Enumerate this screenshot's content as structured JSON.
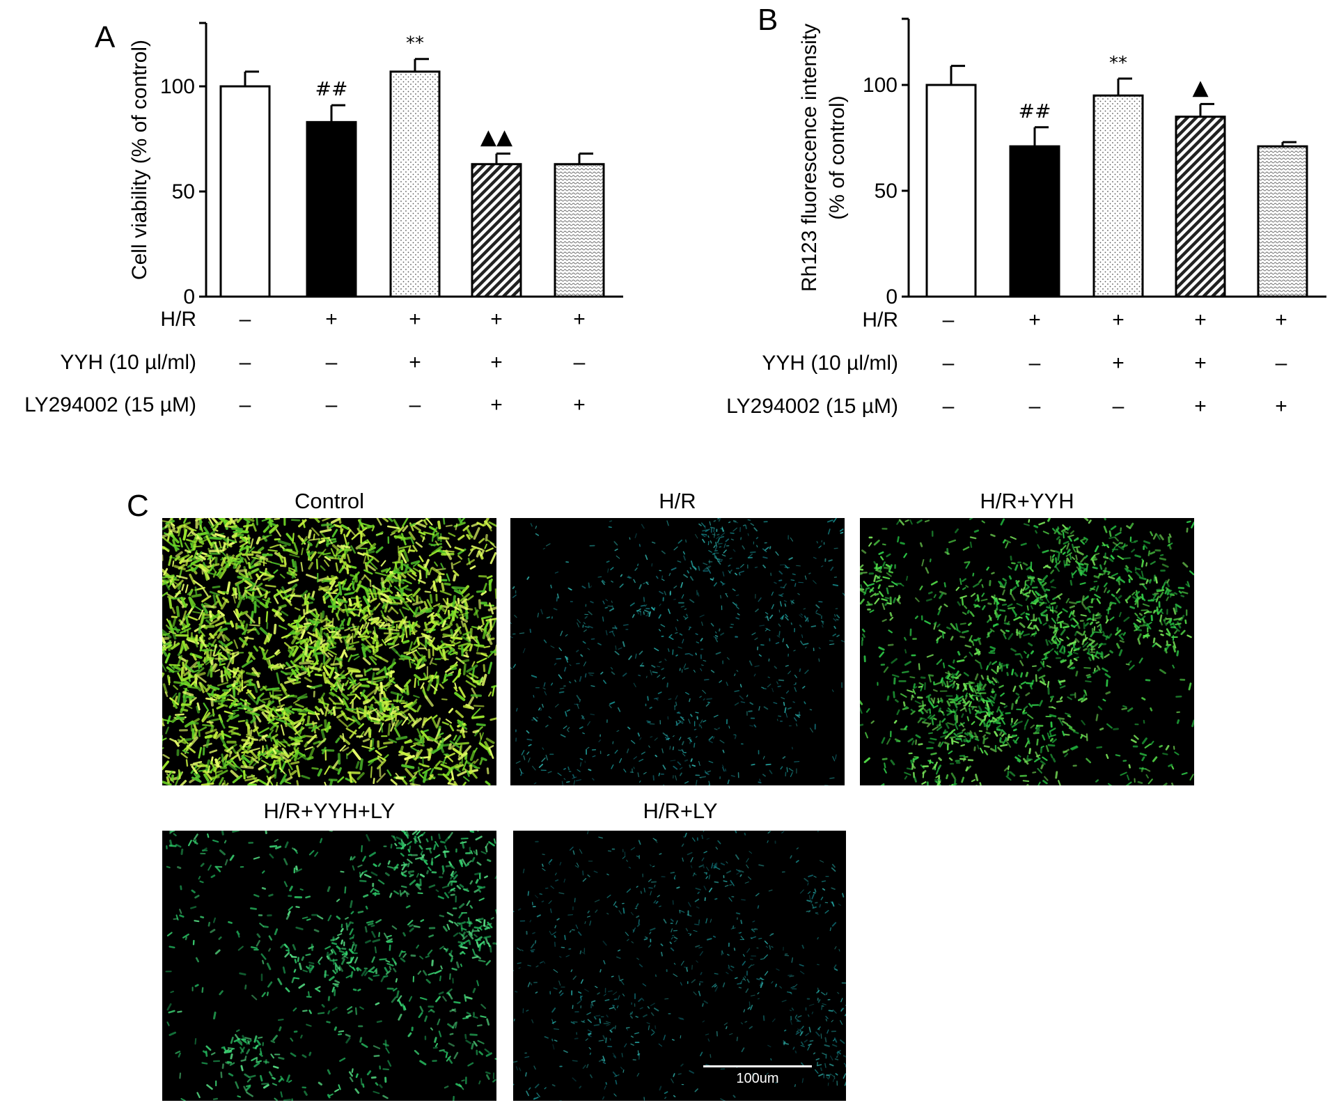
{
  "figure": {
    "panel_labels": [
      "A",
      "B",
      "C"
    ]
  },
  "chart_data": [
    {
      "panel": "A",
      "type": "bar",
      "ylabel": "Cell viability (% of control)",
      "ylim": [
        0,
        130
      ],
      "yticks": [
        0,
        50,
        100
      ],
      "values": [
        100,
        83,
        107,
        63,
        63
      ],
      "errors": [
        7,
        8,
        6,
        5,
        5
      ],
      "annotations": [
        "",
        "##",
        "**",
        "▲▲",
        ""
      ],
      "bar_styles": [
        "white",
        "black",
        "dots",
        "hatch",
        "fine-dots"
      ],
      "conditions": [
        {
          "label": "H/R",
          "signs": [
            "–",
            "+",
            "+",
            "+",
            "+"
          ]
        },
        {
          "label": "YYH (10 µl/ml)",
          "signs": [
            "–",
            "–",
            "+",
            "+",
            "–"
          ]
        },
        {
          "label": "LY294002 (15 µM)",
          "signs": [
            "–",
            "–",
            "–",
            "+",
            "+"
          ]
        }
      ]
    },
    {
      "panel": "B",
      "type": "bar",
      "ylabel": [
        "Rh123 fluorescence intensity",
        "(% of control)"
      ],
      "ylim": [
        0,
        130
      ],
      "yticks": [
        0,
        50,
        100
      ],
      "values": [
        100,
        71,
        95,
        85,
        71
      ],
      "errors": [
        9,
        9,
        8,
        6,
        2
      ],
      "annotations": [
        "",
        "##",
        "**",
        "▲",
        ""
      ],
      "bar_styles": [
        "white",
        "black",
        "dots",
        "hatch",
        "fine-dots"
      ],
      "conditions": [
        {
          "label": "H/R",
          "signs": [
            "–",
            "+",
            "+",
            "+",
            "+"
          ]
        },
        {
          "label": "YYH (10 µl/ml)",
          "signs": [
            "–",
            "–",
            "+",
            "+",
            "–"
          ]
        },
        {
          "label": "LY294002 (15 µM)",
          "signs": [
            "–",
            "–",
            "–",
            "+",
            "+"
          ]
        }
      ]
    }
  ],
  "images": [
    {
      "title": "Control",
      "intensity": "high",
      "hue": "yellow-green"
    },
    {
      "title": "H/R",
      "intensity": "low",
      "hue": "cyan"
    },
    {
      "title": "H/R+YYH",
      "intensity": "medium",
      "hue": "green"
    },
    {
      "title": "H/R+YYH+LY",
      "intensity": "medium-low",
      "hue": "green"
    },
    {
      "title": "H/R+LY",
      "intensity": "low",
      "hue": "cyan"
    }
  ],
  "scale_bar": {
    "label": "100um"
  }
}
